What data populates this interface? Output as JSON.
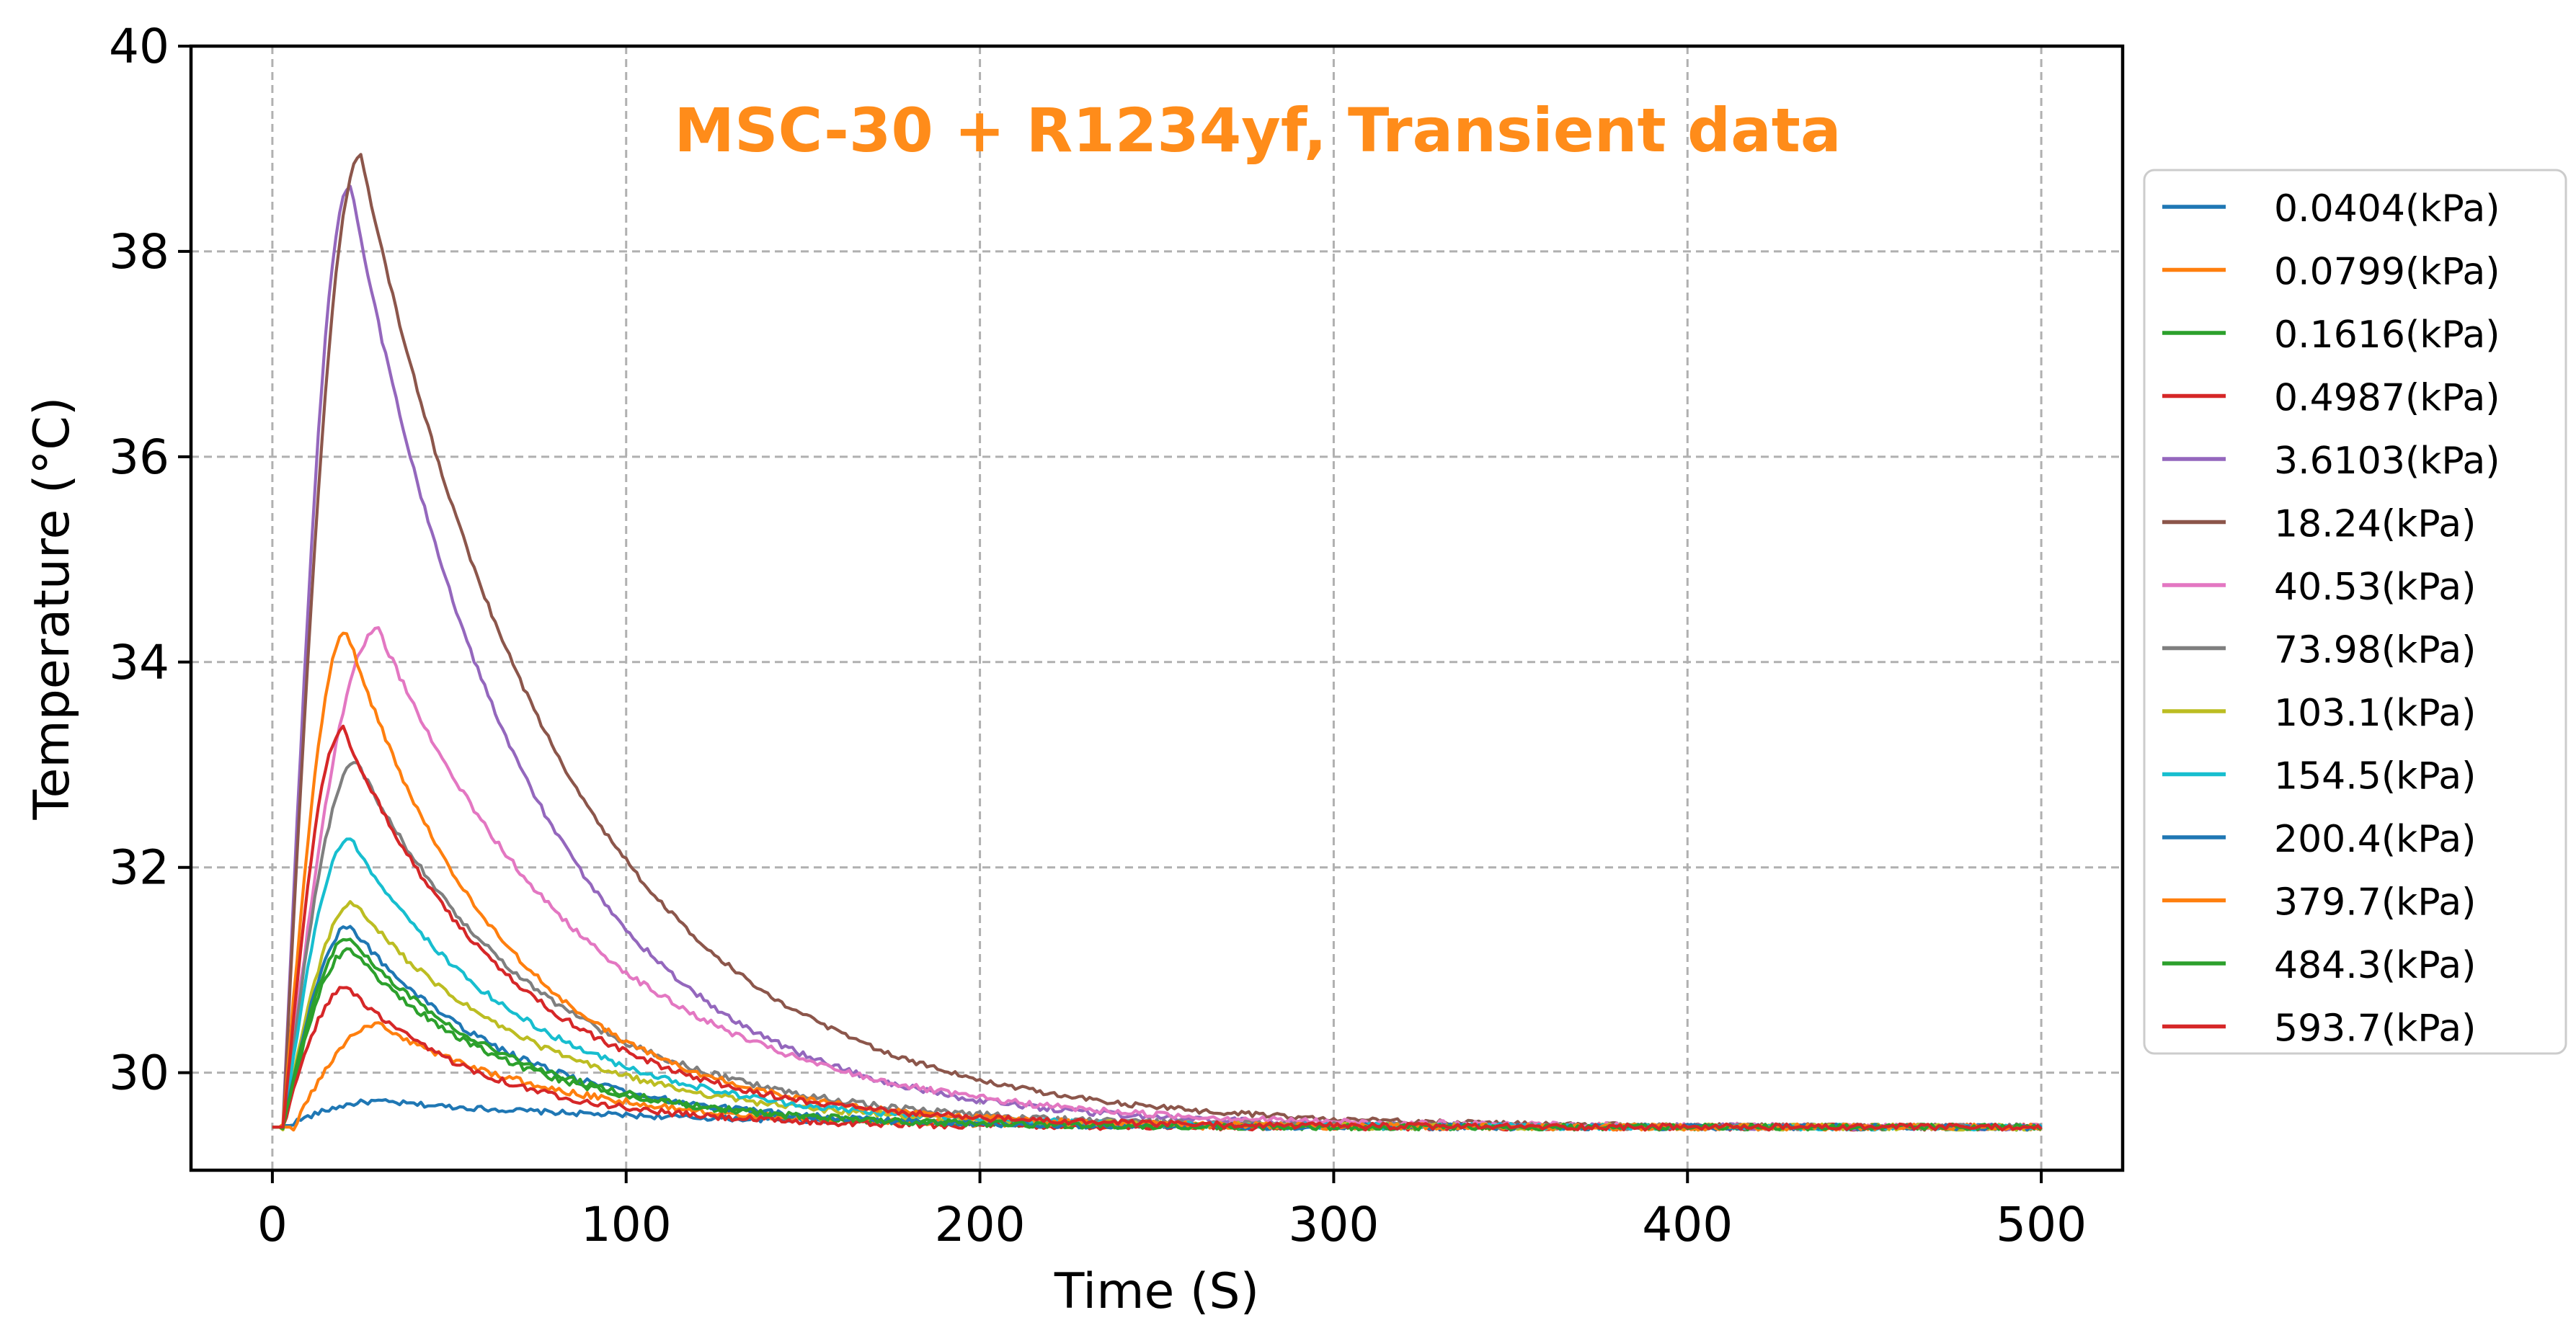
{
  "chart_data": {
    "type": "line",
    "title": "MSC-30 + R1234yf, Transient data",
    "title_color": "#ff8c1a",
    "xlabel": "Time (S)",
    "ylabel": "Temperature (°C)",
    "xlim": [
      -23,
      523
    ],
    "ylim": [
      29.05,
      40.0
    ],
    "xticks": [
      0,
      100,
      200,
      300,
      400,
      500
    ],
    "xtick_labels": [
      "0",
      "100",
      "200",
      "300",
      "400",
      "500"
    ],
    "yticks": [
      30,
      32,
      34,
      36,
      38,
      40
    ],
    "ytick_labels": [
      "30",
      "32",
      "34",
      "36",
      "38",
      "40"
    ],
    "grid": true,
    "legend_position": "right",
    "baseline": 29.47,
    "series": [
      {
        "name": "0.0404(kPa)",
        "color": "#1f77b4",
        "peak": 29.72,
        "tpeak": 30,
        "tau": 90,
        "noise": 0.025,
        "delay": 3
      },
      {
        "name": "0.0799(kPa)",
        "color": "#ff7f0e",
        "peak": 30.47,
        "tpeak": 30,
        "tau": 50,
        "noise": 0.03,
        "delay": 6
      },
      {
        "name": "0.1616(kPa)",
        "color": "#2ca02c",
        "peak": 31.2,
        "tpeak": 22,
        "tau": 45,
        "noise": 0.03,
        "delay": 3
      },
      {
        "name": "0.4987(kPa)",
        "color": "#d62728",
        "peak": 30.83,
        "tpeak": 21,
        "tau": 40,
        "noise": 0.03,
        "delay": 3
      },
      {
        "name": "3.6103(kPa)",
        "color": "#9467bd",
        "peak": 38.65,
        "tpeak": 22,
        "tau": 50,
        "noise": 0.03,
        "delay": 3
      },
      {
        "name": "18.24(kPa)",
        "color": "#8c564b",
        "peak": 38.93,
        "tpeak": 25,
        "tau": 58,
        "noise": 0.025,
        "delay": 3
      },
      {
        "name": "40.53(kPa)",
        "color": "#e377c2",
        "peak": 34.32,
        "tpeak": 30,
        "tau": 60,
        "noise": 0.03,
        "delay": 3
      },
      {
        "name": "73.98(kPa)",
        "color": "#7f7f7f",
        "peak": 33.03,
        "tpeak": 24,
        "tau": 52,
        "noise": 0.03,
        "delay": 3
      },
      {
        "name": "103.1(kPa)",
        "color": "#bcbd22",
        "peak": 31.65,
        "tpeak": 23,
        "tau": 52,
        "noise": 0.03,
        "delay": 3
      },
      {
        "name": "154.5(kPa)",
        "color": "#17becf",
        "peak": 32.28,
        "tpeak": 22,
        "tau": 50,
        "noise": 0.03,
        "delay": 3
      },
      {
        "name": "200.4(kPa)",
        "color": "#1f77b4",
        "peak": 31.43,
        "tpeak": 22,
        "tau": 45,
        "noise": 0.03,
        "delay": 3
      },
      {
        "name": "379.7(kPa)",
        "color": "#ff7f0e",
        "peak": 34.3,
        "tpeak": 21,
        "tau": 45,
        "noise": 0.03,
        "delay": 3
      },
      {
        "name": "484.3(kPa)",
        "color": "#2ca02c",
        "peak": 31.32,
        "tpeak": 22,
        "tau": 45,
        "noise": 0.03,
        "delay": 3
      },
      {
        "name": "593.7(kPa)",
        "color": "#d62728",
        "peak": 33.35,
        "tpeak": 20,
        "tau": 48,
        "noise": 0.03,
        "delay": 3
      }
    ]
  }
}
